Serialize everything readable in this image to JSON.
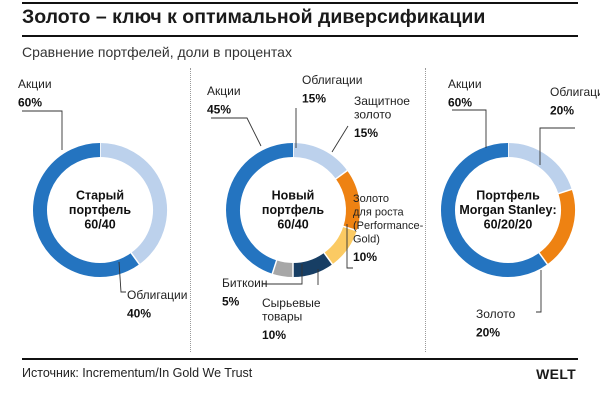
{
  "header": {
    "title": "Золото – ключ к оптимальной диверсификации",
    "subtitle": "Сравнение портфелей, доли в процентах"
  },
  "footer": {
    "source": "Источник: Incrementum/In Gold We Trust",
    "logo": "WELT"
  },
  "colors": {
    "stocks": "#2474c0",
    "bonds": "#bcd1ec",
    "gold_protective": "#ee8212",
    "gold_performance": "#fbca63",
    "bitcoin": "#a7a7a7",
    "commodities": "#173e64",
    "gold_ms": "#ee8212"
  },
  "chart_data": [
    {
      "type": "pie",
      "center_label": [
        "Старый",
        "портфель",
        "60/40"
      ],
      "slices": [
        {
          "key": "bonds",
          "label": [
            "Облигации"
          ],
          "value": 40,
          "value_label": "40%"
        },
        {
          "key": "stocks",
          "label": [
            "Акции"
          ],
          "value": 60,
          "value_label": "60%"
        }
      ]
    },
    {
      "type": "pie",
      "center_label": [
        "Новый",
        "портфель",
        "60/40"
      ],
      "slices": [
        {
          "key": "bonds",
          "label": [
            "Облигации"
          ],
          "value": 15,
          "value_label": "15%"
        },
        {
          "key": "gold_protective",
          "label": [
            "Защитное",
            "золото"
          ],
          "value": 15,
          "value_label": "15%"
        },
        {
          "key": "gold_performance",
          "label": [
            "Золото",
            "для роста",
            "(Performance-",
            "Gold)"
          ],
          "value": 10,
          "value_label": "10%"
        },
        {
          "key": "commodities",
          "label": [
            "Сырьевые",
            "товары"
          ],
          "value": 10,
          "value_label": "10%"
        },
        {
          "key": "bitcoin",
          "label": [
            "Биткоин"
          ],
          "value": 5,
          "value_label": "5%"
        },
        {
          "key": "stocks",
          "label": [
            "Акции"
          ],
          "value": 45,
          "value_label": "45%"
        }
      ]
    },
    {
      "type": "pie",
      "center_label": [
        "Портфель",
        "Morgan Stanley:",
        "60/20/20"
      ],
      "slices": [
        {
          "key": "bonds",
          "label": [
            "Облигации"
          ],
          "value": 20,
          "value_label": "20%"
        },
        {
          "key": "gold_ms",
          "label": [
            "Золото"
          ],
          "value": 20,
          "value_label": "20%"
        },
        {
          "key": "stocks",
          "label": [
            "Акции"
          ],
          "value": 60,
          "value_label": "60%"
        }
      ]
    }
  ]
}
